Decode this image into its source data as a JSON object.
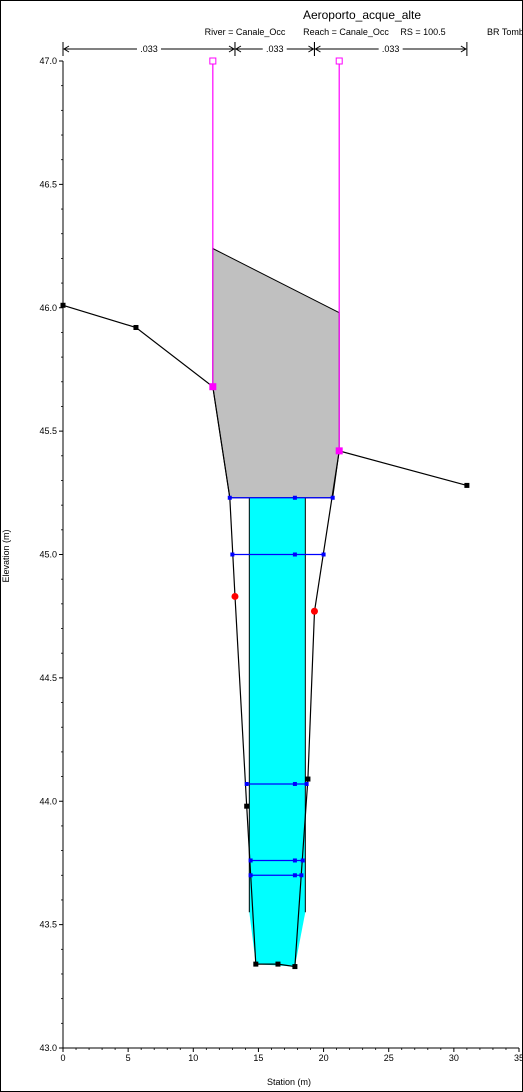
{
  "chart_data": {
    "type": "line",
    "title": "Aeroporto_acque_alte",
    "subtitle": {
      "river": "River = Canale_Occ",
      "reach": "Reach = Canale_Occ",
      "rs": "RS = 100.5",
      "br": "BR  Tombino a"
    },
    "xlabel": "Station (m)",
    "ylabel": "Elevation (m)",
    "xlim": [
      0,
      35
    ],
    "ylim": [
      43.0,
      47.0
    ],
    "x_ticks": [
      0,
      5,
      10,
      15,
      20,
      25,
      30,
      35
    ],
    "y_ticks": [
      43.0,
      43.5,
      44.0,
      44.5,
      45.0,
      45.5,
      46.0,
      46.5,
      47.0
    ],
    "y_tick_labels": [
      "43.0",
      "43.5",
      "44.0",
      "44.5",
      "45.0",
      "45.5",
      "46.0",
      "46.5",
      "47.0"
    ],
    "mannings_n": [
      {
        "label": ".033",
        "from": 0,
        "to": 13.2
      },
      {
        "label": ".033",
        "from": 13.2,
        "to": 19.3
      },
      {
        "label": ".033",
        "from": 19.3,
        "to": 31.0
      }
    ],
    "ground": {
      "x": [
        0,
        5.6,
        11.5,
        12.8,
        13.2,
        14.1,
        14.8,
        16.5,
        17.8,
        18.8,
        19.3,
        21.2,
        31.0
      ],
      "y": [
        46.01,
        45.92,
        45.68,
        45.23,
        44.83,
        43.98,
        43.34,
        43.34,
        43.33,
        44.09,
        44.77,
        45.42,
        45.28
      ]
    },
    "ground_markers": {
      "x": [
        0,
        5.6,
        14.1,
        14.8,
        16.5,
        17.8,
        18.8,
        31.0
      ],
      "y": [
        46.01,
        45.92,
        43.98,
        43.34,
        43.34,
        43.33,
        44.09,
        45.28
      ]
    },
    "bank_stations": {
      "x": [
        13.2,
        19.3
      ],
      "y": [
        44.83,
        44.77
      ]
    },
    "ineffective": {
      "left": {
        "x": 11.5,
        "bottom": 45.68,
        "top": 47.0
      },
      "right": {
        "x": 21.2,
        "bottom": 45.42,
        "top": 47.0
      }
    },
    "deck": {
      "x": [
        11.5,
        21.2,
        21.2,
        20.7,
        12.8,
        11.5
      ],
      "y": [
        46.24,
        45.98,
        45.42,
        45.23,
        45.23,
        45.68
      ]
    },
    "water": {
      "x": [
        14.3,
        18.6,
        18.6,
        17.8,
        14.8,
        14.3
      ],
      "y": [
        45.23,
        45.23,
        43.55,
        43.33,
        43.34,
        43.55
      ]
    },
    "culvert_walls": {
      "x": [
        14.3,
        18.6
      ],
      "top": 45.23
    },
    "wse_lines": [
      {
        "name": "",
        "y": 45.23,
        "x": [
          12.8,
          17.8,
          20.7
        ]
      },
      {
        "name": "",
        "y": 45.0,
        "x": [
          13.0,
          17.8,
          20.0
        ]
      },
      {
        "name": "",
        "y": 44.07,
        "x": [
          14.1,
          17.8,
          18.7
        ]
      },
      {
        "name": "",
        "y": 43.76,
        "x": [
          14.4,
          17.8,
          18.4
        ]
      },
      {
        "name": "",
        "y": 43.7,
        "x": [
          14.4,
          17.8,
          18.3
        ]
      }
    ],
    "colors": {
      "ground": "#000000",
      "deck_fill": "#c0c0c0",
      "water_fill": "#00ffff",
      "wse": "#0000ff",
      "ineffective": "#ff00ff",
      "bank": "#ff0000"
    },
    "grid": false,
    "legend": "none"
  }
}
